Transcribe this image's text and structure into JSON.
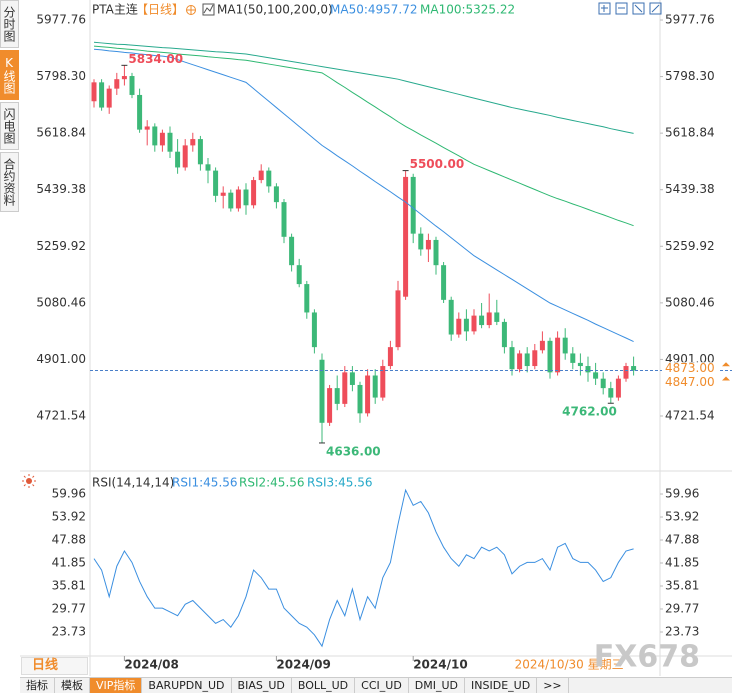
{
  "chart_data": [
    {
      "type": "candlestick",
      "title": "PTA主连",
      "period": "【日线】",
      "indicator": "MA1(50,100,200,0)",
      "categories": [
        null,
        null,
        null,
        null,
        "2024/08",
        null,
        null,
        null,
        null,
        null,
        null,
        null,
        null,
        null,
        null,
        null,
        null,
        null,
        null,
        null,
        null,
        null,
        null,
        null,
        "2024/09",
        null,
        null,
        null,
        null,
        null,
        null,
        null,
        null,
        null,
        null,
        null,
        null,
        null,
        null,
        null,
        null,
        null,
        "2024/10",
        null,
        null,
        null,
        null,
        null,
        null,
        null,
        null,
        null,
        null,
        null,
        null,
        null,
        null,
        null,
        null,
        null,
        null,
        null,
        null,
        null,
        null,
        null,
        null,
        null,
        null,
        null,
        null,
        null
      ],
      "open": [
        5720,
        5780,
        5700,
        5760,
        5790,
        5800,
        5740,
        5630,
        5640,
        5580,
        5620,
        5560,
        5510,
        5580,
        5600,
        5520,
        5500,
        5420,
        5430,
        5380,
        5440,
        5390,
        5470,
        5500,
        5450,
        5400,
        5290,
        5200,
        5140,
        5050,
        4900,
        4700,
        4810,
        4760,
        4860,
        4820,
        4730,
        4850,
        4780,
        4880,
        4940,
        5100,
        5480,
        5300,
        5250,
        5280,
        5200,
        5090,
        4980,
        5030,
        4990,
        5040,
        5010,
        5050,
        5020,
        4940,
        4870,
        4920,
        4880,
        4930,
        4960,
        4860,
        4970,
        4920,
        4890,
        4880,
        4860,
        4840,
        4810,
        4780,
        4840,
        4880
      ],
      "high": [
        5790,
        5790,
        5770,
        5810,
        5834,
        5810,
        5760,
        5660,
        5650,
        5630,
        5640,
        5600,
        5600,
        5620,
        5610,
        5540,
        5510,
        5450,
        5440,
        5450,
        5460,
        5480,
        5520,
        5510,
        5460,
        5410,
        5300,
        5220,
        5150,
        5060,
        4920,
        4820,
        4850,
        4880,
        4880,
        4830,
        4870,
        4870,
        4900,
        4960,
        5150,
        5500,
        5490,
        5320,
        5300,
        5290,
        5210,
        5100,
        5050,
        5060,
        5060,
        5080,
        5110,
        5090,
        5030,
        4960,
        4930,
        4940,
        4950,
        4990,
        4970,
        4990,
        5000,
        4940,
        4920,
        4910,
        4890,
        4860,
        4830,
        4850,
        4890,
        4910
      ],
      "low": [
        5700,
        5690,
        5680,
        5740,
        5770,
        5730,
        5620,
        5580,
        5560,
        5560,
        5540,
        5490,
        5500,
        5560,
        5500,
        5460,
        5400,
        5380,
        5370,
        5370,
        5360,
        5380,
        5460,
        5430,
        5380,
        5270,
        5180,
        5130,
        5030,
        4920,
        4636,
        4690,
        4740,
        4750,
        4800,
        4700,
        4720,
        4760,
        4770,
        4870,
        4930,
        5090,
        5270,
        5230,
        5210,
        5170,
        5080,
        4960,
        4970,
        4960,
        4980,
        5000,
        5000,
        5010,
        4920,
        4850,
        4860,
        4860,
        4870,
        4920,
        4840,
        4850,
        4900,
        4870,
        4850,
        4830,
        4820,
        4790,
        4762,
        4770,
        4830,
        4850
      ],
      "close": [
        5780,
        5700,
        5760,
        5790,
        5800,
        5740,
        5630,
        5640,
        5580,
        5620,
        5560,
        5510,
        5580,
        5600,
        5520,
        5500,
        5420,
        5430,
        5380,
        5440,
        5390,
        5470,
        5500,
        5450,
        5400,
        5290,
        5200,
        5140,
        5050,
        4940,
        4700,
        4810,
        4760,
        4860,
        4820,
        4730,
        4850,
        4780,
        4880,
        4940,
        5120,
        5480,
        5300,
        5250,
        5280,
        5200,
        5090,
        4980,
        5030,
        4990,
        5040,
        5010,
        5050,
        5020,
        4940,
        4870,
        4920,
        4880,
        4930,
        4960,
        4860,
        4970,
        4920,
        4890,
        4880,
        4860,
        4840,
        4810,
        4780,
        4840,
        4880,
        4866
      ],
      "up_color": "#ee4d5a",
      "down_color": "#3cb878",
      "ma": [
        {
          "label": "MA50:4957.72",
          "color": "#3b8fe0",
          "values": [
            5885,
            5883,
            5880,
            5878,
            5875,
            5873,
            5870,
            5868,
            5865,
            5863,
            5860,
            5852,
            5844,
            5836,
            5828,
            5820,
            5812,
            5804,
            5796,
            5788,
            5780,
            5760,
            5740,
            5720,
            5700,
            5680,
            5660,
            5640,
            5620,
            5600,
            5580,
            5564,
            5547,
            5531,
            5515,
            5498,
            5482,
            5465,
            5449,
            5433,
            5416,
            5400,
            5381,
            5362,
            5343,
            5324,
            5306,
            5287,
            5268,
            5249,
            5230,
            5215,
            5200,
            5185,
            5170,
            5155,
            5140,
            5125,
            5110,
            5095,
            5080,
            5069,
            5058,
            5047,
            5036,
            5025,
            5013,
            5002,
            4991,
            4980,
            4969,
            4957.72
          ]
        },
        {
          "label": "MA100:5325.22",
          "color": "#2eb872",
          "values": [
            5895,
            5893,
            5891,
            5888,
            5886,
            5884,
            5882,
            5879,
            5877,
            5875,
            5873,
            5870,
            5868,
            5866,
            5864,
            5861,
            5859,
            5857,
            5855,
            5852,
            5850,
            5846,
            5842,
            5838,
            5834,
            5830,
            5826,
            5822,
            5818,
            5814,
            5810,
            5795,
            5779,
            5764,
            5748,
            5733,
            5717,
            5702,
            5686,
            5671,
            5655,
            5640,
            5627,
            5613,
            5600,
            5587,
            5573,
            5560,
            5547,
            5533,
            5520,
            5510,
            5500,
            5490,
            5480,
            5470,
            5460,
            5450,
            5440,
            5430,
            5420,
            5411,
            5403,
            5394,
            5386,
            5377,
            5368,
            5360,
            5351,
            5342,
            5334,
            5325.22
          ]
        },
        {
          "color": "#27a98d",
          "values": [
            5907,
            5905,
            5903,
            5901,
            5900,
            5898,
            5896,
            5894,
            5892,
            5890,
            5889,
            5887,
            5885,
            5883,
            5881,
            5879,
            5877,
            5876,
            5874,
            5872,
            5870,
            5866,
            5862,
            5858,
            5854,
            5850,
            5846,
            5842,
            5838,
            5834,
            5830,
            5826,
            5822,
            5818,
            5814,
            5810,
            5806,
            5802,
            5798,
            5794,
            5790,
            5784,
            5778,
            5772,
            5766,
            5760,
            5754,
            5748,
            5742,
            5736,
            5730,
            5724,
            5718,
            5712,
            5706,
            5700,
            5695,
            5690,
            5685,
            5680,
            5675,
            5669,
            5664,
            5659,
            5654,
            5649,
            5644,
            5639,
            5633,
            5628,
            5623,
            5618
          ]
        }
      ],
      "ylim": [
        4556.58,
        6003.14
      ],
      "yticks": [
        5977.76,
        {
          "value": 5798.3,
          "label": "5798.30"
        },
        5618.84,
        5439.38,
        5259.92,
        5080.46,
        {
          "value": 4901,
          "label": "4901.00"
        },
        4721.54
      ],
      "grid": false,
      "last_price_line": true,
      "price_tags": [
        {
          "value": 4873,
          "label": "4873.00"
        },
        {
          "value": 4847,
          "label": "4847.00"
        }
      ],
      "annotations": [
        {
          "value": 5834,
          "label": "5834.00"
        },
        {
          "value": 5500,
          "label": "5500.00"
        },
        {
          "value": 4636,
          "label": "4636.00"
        },
        {
          "value": 4762,
          "label": "4762.00"
        }
      ],
      "cursor_label": "2024/10/30 星期三"
    },
    {
      "type": "line",
      "title": "RSI(14,14,14)",
      "legend": [
        {
          "label": "RSI1:45.56",
          "color": "#3b8fe0"
        },
        {
          "label": "RSI2:45.56",
          "color": "#2eb872"
        },
        {
          "label": "RSI3:45.56",
          "color": "#27a9c9"
        }
      ],
      "series": [
        {
          "color": "#3b8fe0",
          "values": [
            43,
            40,
            33,
            41,
            45,
            42,
            37,
            33,
            30,
            30,
            29,
            28,
            31,
            32,
            30,
            28,
            26,
            27,
            25,
            28,
            33,
            40,
            38,
            35,
            35,
            30,
            28,
            26,
            25,
            23,
            20,
            27,
            32,
            28,
            35,
            27,
            33,
            30,
            38,
            42,
            52,
            61,
            57,
            58,
            55,
            50,
            46,
            43,
            41,
            44,
            43,
            46,
            45,
            46,
            44,
            39,
            41,
            42,
            42,
            43,
            40,
            46,
            47,
            43,
            42,
            42,
            40,
            37,
            38,
            42,
            45,
            45.56
          ]
        }
      ],
      "ylim": [
        17.43,
        61.54
      ],
      "yticks": [
        59.96,
        53.92,
        47.88,
        41.85,
        35.81,
        29.77,
        23.73
      ]
    }
  ],
  "sidebar_tabs": [
    "分时图",
    "K线图",
    "闪电图",
    "合约资料"
  ],
  "sidebar_active": 1,
  "bottom_period": "日线",
  "toolbar": [
    "指标",
    "模板",
    "VIP指标",
    "BARUPDN_UD",
    "BIAS_UD",
    "BOLL_UD",
    "CCI_UD",
    "DMI_UD",
    "INSIDE_UD",
    ">>"
  ],
  "toolbar_active": 2,
  "watermark": "FX678"
}
